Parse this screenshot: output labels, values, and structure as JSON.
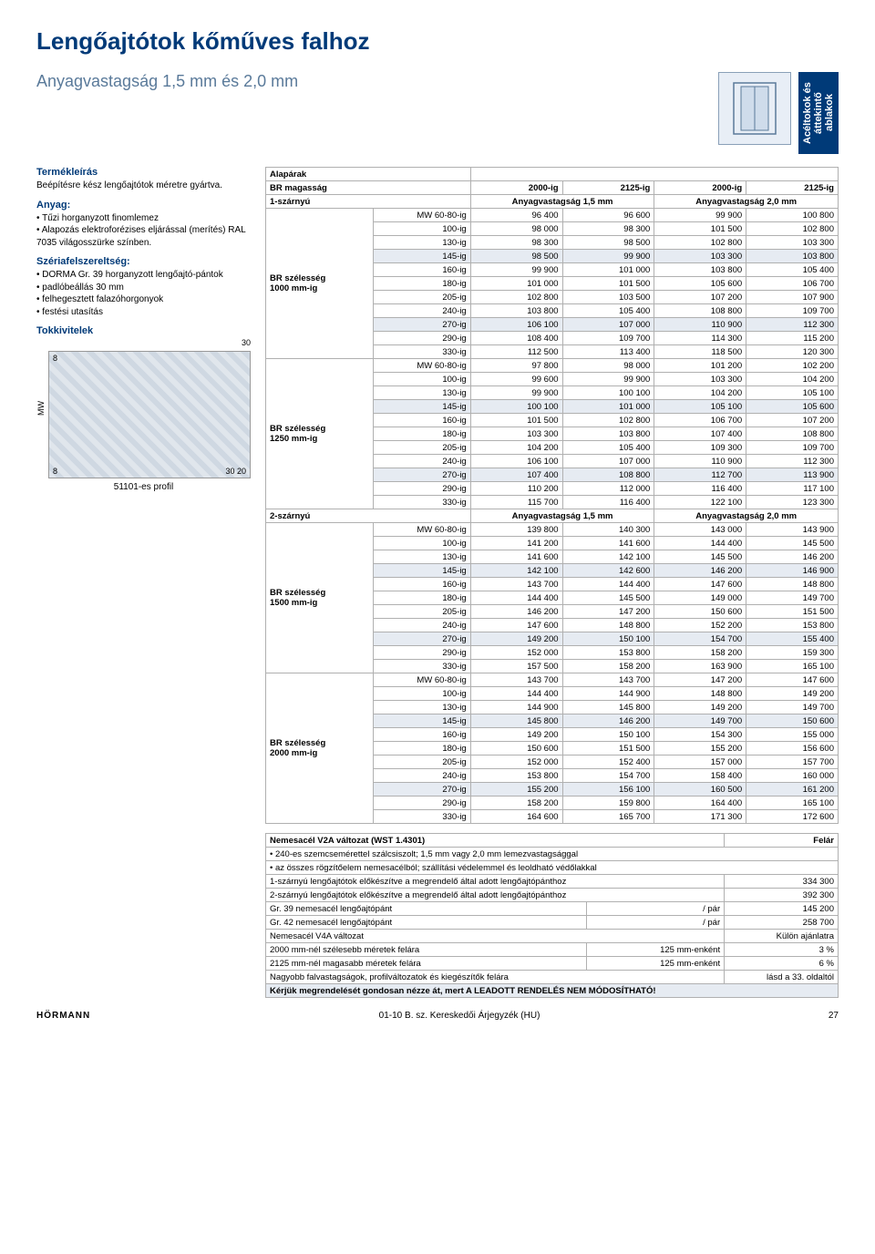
{
  "page_title": "Lengőajtótok kőműves falhoz",
  "subtitle": "Anyagvastagság 1,5 mm és 2,0 mm",
  "side_label": "Acéltokok és áttekintő ablakok",
  "left": {
    "termek_title": "Termékleírás",
    "termek_text": "Beépítésre kész lengőajtótok méretre gyártva.",
    "anyag_title": "Anyag:",
    "anyag_items": [
      "Tűzi horganyzott finomlemez",
      "Alapozás elektroforézises eljárással (merítés) RAL 7035 világosszürke színben."
    ],
    "szeria_title": "Szériafelszereltség:",
    "szeria_items": [
      "DORMA Gr. 39 horganyzott lengőajtó-pántok",
      "padlóbeállás 30 mm",
      "felhegesztett falazóhorgonyok",
      "festési utasítás"
    ],
    "tokk_title": "Tokkivitelek",
    "profile_caption": "51101-es profil",
    "mw_label": "MW",
    "dims": {
      "a": "8",
      "b": "30",
      "c": "20"
    }
  },
  "price": {
    "alaparak": "Alapárak",
    "br_magassag": "BR magasság",
    "cols_top": [
      "2000-ig",
      "2125-ig",
      "2000-ig",
      "2125-ig"
    ],
    "szarnyu1": "1-szárnyú",
    "av15": "Anyagvastagság 1,5 mm",
    "av20": "Anyagvastagság 2,0 mm",
    "szarnyu2": "2-szárnyú",
    "groups": [
      {
        "label": "BR szélesség 1000 mm-ig",
        "rows": [
          {
            "h": "MW 60-80-ig",
            "v": [
              "96 400",
              "96 600",
              "99 900",
              "100 800"
            ]
          },
          {
            "h": "100-ig",
            "v": [
              "98 000",
              "98 300",
              "101 500",
              "102 800"
            ]
          },
          {
            "h": "130-ig",
            "v": [
              "98 300",
              "98 500",
              "102 800",
              "103 300"
            ]
          },
          {
            "h": "145-ig",
            "v": [
              "98 500",
              "99 900",
              "103 300",
              "103 800"
            ],
            "shade": true
          },
          {
            "h": "160-ig",
            "v": [
              "99 900",
              "101 000",
              "103 800",
              "105 400"
            ]
          },
          {
            "h": "180-ig",
            "v": [
              "101 000",
              "101 500",
              "105 600",
              "106 700"
            ]
          },
          {
            "h": "205-ig",
            "v": [
              "102 800",
              "103 500",
              "107 200",
              "107 900"
            ]
          },
          {
            "h": "240-ig",
            "v": [
              "103 800",
              "105 400",
              "108 800",
              "109 700"
            ]
          },
          {
            "h": "270-ig",
            "v": [
              "106 100",
              "107 000",
              "110 900",
              "112 300"
            ],
            "shade": true
          },
          {
            "h": "290-ig",
            "v": [
              "108 400",
              "109 700",
              "114 300",
              "115 200"
            ]
          },
          {
            "h": "330-ig",
            "v": [
              "112 500",
              "113 400",
              "118 500",
              "120 300"
            ]
          }
        ]
      },
      {
        "label": "BR szélesség 1250 mm-ig",
        "rows": [
          {
            "h": "MW 60-80-ig",
            "v": [
              "97 800",
              "98 000",
              "101 200",
              "102 200"
            ]
          },
          {
            "h": "100-ig",
            "v": [
              "99 600",
              "99 900",
              "103 300",
              "104 200"
            ]
          },
          {
            "h": "130-ig",
            "v": [
              "99 900",
              "100 100",
              "104 200",
              "105 100"
            ]
          },
          {
            "h": "145-ig",
            "v": [
              "100 100",
              "101 000",
              "105 100",
              "105 600"
            ],
            "shade": true
          },
          {
            "h": "160-ig",
            "v": [
              "101 500",
              "102 800",
              "106 700",
              "107 200"
            ]
          },
          {
            "h": "180-ig",
            "v": [
              "103 300",
              "103 800",
              "107 400",
              "108 800"
            ]
          },
          {
            "h": "205-ig",
            "v": [
              "104 200",
              "105 400",
              "109 300",
              "109 700"
            ]
          },
          {
            "h": "240-ig",
            "v": [
              "106 100",
              "107 000",
              "110 900",
              "112 300"
            ]
          },
          {
            "h": "270-ig",
            "v": [
              "107 400",
              "108 800",
              "112 700",
              "113 900"
            ],
            "shade": true
          },
          {
            "h": "290-ig",
            "v": [
              "110 200",
              "112 000",
              "116 400",
              "117 100"
            ]
          },
          {
            "h": "330-ig",
            "v": [
              "115 700",
              "116 400",
              "122 100",
              "123 300"
            ]
          }
        ]
      }
    ],
    "groups2": [
      {
        "label": "BR szélesség 1500 mm-ig",
        "rows": [
          {
            "h": "MW 60-80-ig",
            "v": [
              "139 800",
              "140 300",
              "143 000",
              "143 900"
            ]
          },
          {
            "h": "100-ig",
            "v": [
              "141 200",
              "141 600",
              "144 400",
              "145 500"
            ]
          },
          {
            "h": "130-ig",
            "v": [
              "141 600",
              "142 100",
              "145 500",
              "146 200"
            ]
          },
          {
            "h": "145-ig",
            "v": [
              "142 100",
              "142 600",
              "146 200",
              "146 900"
            ],
            "shade": true
          },
          {
            "h": "160-ig",
            "v": [
              "143 700",
              "144 400",
              "147 600",
              "148 800"
            ]
          },
          {
            "h": "180-ig",
            "v": [
              "144 400",
              "145 500",
              "149 000",
              "149 700"
            ]
          },
          {
            "h": "205-ig",
            "v": [
              "146 200",
              "147 200",
              "150 600",
              "151 500"
            ]
          },
          {
            "h": "240-ig",
            "v": [
              "147 600",
              "148 800",
              "152 200",
              "153 800"
            ]
          },
          {
            "h": "270-ig",
            "v": [
              "149 200",
              "150 100",
              "154 700",
              "155 400"
            ],
            "shade": true
          },
          {
            "h": "290-ig",
            "v": [
              "152 000",
              "153 800",
              "158 200",
              "159 300"
            ]
          },
          {
            "h": "330-ig",
            "v": [
              "157 500",
              "158 200",
              "163 900",
              "165 100"
            ]
          }
        ]
      },
      {
        "label": "BR szélesség 2000 mm-ig",
        "rows": [
          {
            "h": "MW 60-80-ig",
            "v": [
              "143 700",
              "143 700",
              "147 200",
              "147 600"
            ]
          },
          {
            "h": "100-ig",
            "v": [
              "144 400",
              "144 900",
              "148 800",
              "149 200"
            ]
          },
          {
            "h": "130-ig",
            "v": [
              "144 900",
              "145 800",
              "149 200",
              "149 700"
            ]
          },
          {
            "h": "145-ig",
            "v": [
              "145 800",
              "146 200",
              "149 700",
              "150 600"
            ],
            "shade": true
          },
          {
            "h": "160-ig",
            "v": [
              "149 200",
              "150 100",
              "154 300",
              "155 000"
            ]
          },
          {
            "h": "180-ig",
            "v": [
              "150 600",
              "151 500",
              "155 200",
              "156 600"
            ]
          },
          {
            "h": "205-ig",
            "v": [
              "152 000",
              "152 400",
              "157 000",
              "157 700"
            ]
          },
          {
            "h": "240-ig",
            "v": [
              "153 800",
              "154 700",
              "158 400",
              "160 000"
            ]
          },
          {
            "h": "270-ig",
            "v": [
              "155 200",
              "156 100",
              "160 500",
              "161 200"
            ],
            "shade": true
          },
          {
            "h": "290-ig",
            "v": [
              "158 200",
              "159 800",
              "164 400",
              "165 100"
            ]
          },
          {
            "h": "330-ig",
            "v": [
              "164 600",
              "165 700",
              "171 300",
              "172 600"
            ]
          }
        ]
      }
    ]
  },
  "bottom": {
    "head_left": "Nemesacél V2A változat (WST 1.4301)",
    "head_right": "Felár",
    "bullets": [
      "240-es szemcsemérettel szálcsiszolt; 1,5 mm vagy 2,0 mm lemezvastagsággal",
      "az összes rögzítőelem nemesacélból; szállítási védelemmel és leoldható védőlakkal"
    ],
    "rows": [
      {
        "l": "1-szárnyú lengőajtótok előkészítve a megrendelő által adott lengőajtópánthoz",
        "r": "334 300"
      },
      {
        "l": "2-szárnyú lengőajtótok előkészítve a megrendelő által adott lengőajtópánthoz",
        "r": "392 300"
      },
      {
        "l": "Gr. 39 nemesacél lengőajtópánt",
        "m": "/ pár",
        "r": "145 200"
      },
      {
        "l": "Gr. 42 nemesacél lengőajtópánt",
        "m": "/ pár",
        "r": "258 700"
      },
      {
        "l": "Nemesacél V4A változat",
        "r": "Külön ajánlatra"
      },
      {
        "l": "2000 mm-nél szélesebb méretek felára",
        "m": "125 mm-enként",
        "r": "3 %"
      },
      {
        "l": "2125 mm-nél magasabb méretek felára",
        "m": "125 mm-enként",
        "r": "6 %"
      },
      {
        "l": "Nagyobb falvastagságok, profilváltozatok és kiegészítők felára",
        "r": "lásd a 33. oldaltól"
      }
    ],
    "last": "Kérjük megrendelését gondosan nézze át, mert A LEADOTT RENDELÉS NEM MÓDOSÍTHATÓ!"
  },
  "footer": {
    "logo": "HÖRMANN",
    "center": "01-10 B. sz. Kereskedői Árjegyzék (HU)",
    "page": "27"
  }
}
